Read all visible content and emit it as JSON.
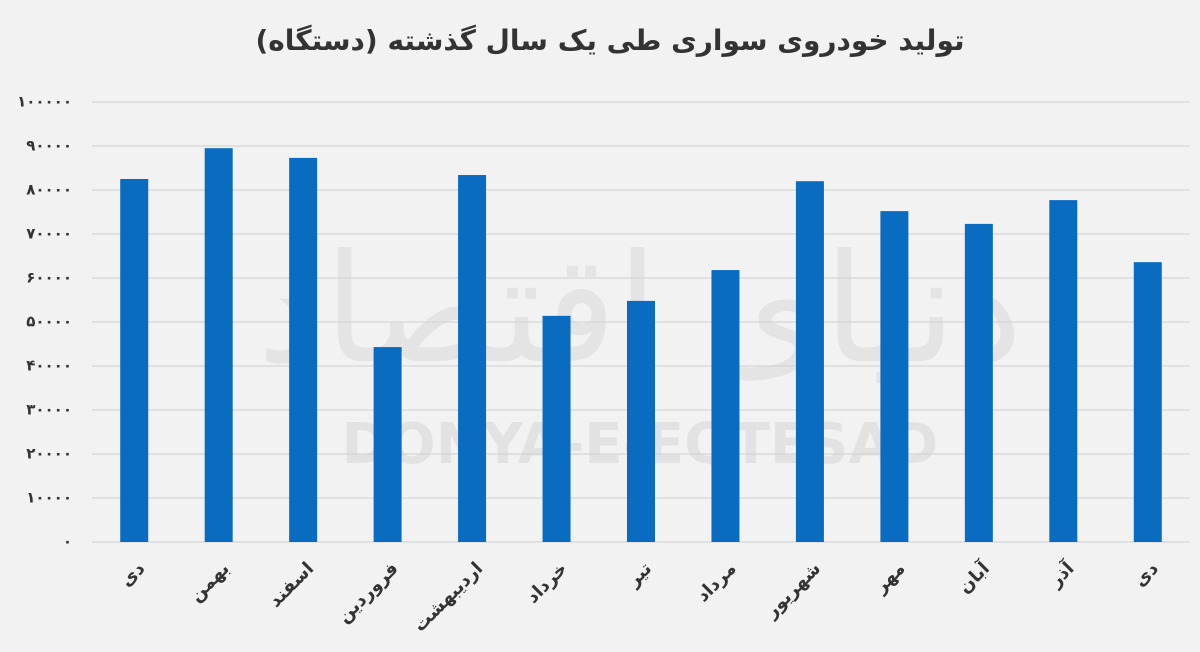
{
  "chart_data": {
    "type": "bar",
    "title": "تولید خودروی سواری طی یک سال گذشته (دستگاه)",
    "watermark": "DONYA-E-EQTESAD",
    "watermark_logo": "دنیای اقتصاد",
    "categories": [
      "دی",
      "بهمن",
      "اسفند",
      "فروردین",
      "اردیبهشت",
      "خرداد",
      "تیر",
      "مرداد",
      "شهریور",
      "مهر",
      "آبان",
      "آذر",
      "دی"
    ],
    "values": [
      82500,
      89500,
      87300,
      44300,
      83400,
      51400,
      54800,
      61800,
      82000,
      75200,
      72300,
      77700,
      63600
    ],
    "color": "#0a6cc0",
    "ylim": [
      0,
      100000
    ],
    "yticks": [
      {
        "value": 0,
        "label": "۰"
      },
      {
        "value": 10000,
        "label": "۱۰۰۰۰"
      },
      {
        "value": 20000,
        "label": "۲۰۰۰۰"
      },
      {
        "value": 30000,
        "label": "۳۰۰۰۰"
      },
      {
        "value": 40000,
        "label": "۴۰۰۰۰"
      },
      {
        "value": 50000,
        "label": "۵۰۰۰۰"
      },
      {
        "value": 60000,
        "label": "۶۰۰۰۰"
      },
      {
        "value": 70000,
        "label": "۷۰۰۰۰"
      },
      {
        "value": 80000,
        "label": "۸۰۰۰۰"
      },
      {
        "value": 90000,
        "label": "۹۰۰۰۰"
      },
      {
        "value": 100000,
        "label": "۱۰۰۰۰۰"
      }
    ],
    "grid": true
  }
}
